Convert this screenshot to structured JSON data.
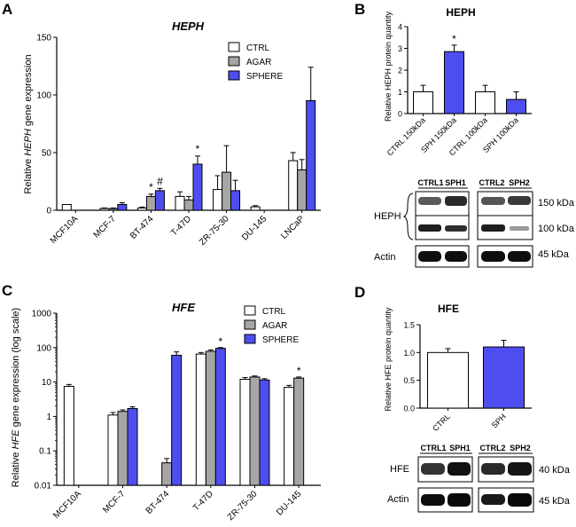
{
  "colors": {
    "ctrl": "#ffffff",
    "agar": "#a6a6a6",
    "sphere": "#4e4ef0",
    "ink": "#000000"
  },
  "chart_data": [
    {
      "panel": "A",
      "type": "bar",
      "title": "HEPH",
      "ylabel_prefix": "Relative ",
      "ylabel_gene": "HEPH",
      "ylabel_suffix": " gene expression",
      "ylim": [
        0,
        150
      ],
      "yticks": [
        "0",
        "50",
        "100",
        "150"
      ],
      "categories": [
        "MCF10A",
        "MCF-7",
        "BT-474",
        "T-47D",
        "ZR-75-30",
        "DU-145",
        "LNCaP"
      ],
      "legend": [
        "CTRL",
        "AGAR",
        "SPHERE"
      ],
      "series": [
        {
          "name": "CTRL",
          "values": [
            5,
            1.5,
            2,
            12,
            18,
            3,
            43
          ],
          "errors": [
            0,
            0.5,
            0.8,
            4,
            12,
            1,
            7
          ]
        },
        {
          "name": "AGAR",
          "values": [
            null,
            1.5,
            12,
            9,
            33,
            null,
            35
          ],
          "errors": [
            0,
            0.5,
            2,
            3,
            23,
            0,
            9
          ]
        },
        {
          "name": "SPHERE",
          "values": [
            null,
            5,
            17,
            40,
            17,
            null,
            95
          ],
          "errors": [
            0,
            1.5,
            2,
            7,
            9,
            0,
            29
          ]
        }
      ],
      "annotations": [
        {
          "text": "*",
          "category": "BT-474",
          "series": "AGAR"
        },
        {
          "text": "#",
          "category": "BT-474",
          "series": "SPHERE"
        },
        {
          "text": "*",
          "category": "T-47D",
          "series": "SPHERE"
        }
      ]
    },
    {
      "panel": "B",
      "type": "bar",
      "title": "HEPH",
      "ylabel": "Relative HEPH protein quantity",
      "ylim": [
        0,
        4
      ],
      "yticks": [
        "0",
        "1",
        "2",
        "3",
        "4"
      ],
      "categories": [
        "CTRL 150kDa",
        "SPH 150kDa",
        "CTRL 100kDa",
        "SPH 100kDa"
      ],
      "values": [
        1.0,
        2.85,
        1.0,
        0.65
      ],
      "errors": [
        0.3,
        0.3,
        0.3,
        0.35
      ],
      "bar_groups": [
        "ctrl",
        "sphere",
        "ctrl",
        "sphere"
      ],
      "annotations": [
        {
          "text": "*",
          "category": "SPH 150kDa"
        }
      ]
    },
    {
      "panel": "C",
      "type": "bar",
      "yscale": "log",
      "title": "HFE",
      "ylabel_prefix": "Relative ",
      "ylabel_gene": "HFE",
      "ylabel_suffix": " gene expression (log scale)",
      "ylim": [
        0.01,
        1000
      ],
      "yticks": [
        "0.01",
        "0.1",
        "1",
        "10",
        "100",
        "1000"
      ],
      "categories": [
        "MCF10A",
        "MCF-7",
        "BT-474",
        "T-47D",
        "ZR-75-30",
        "DU-145"
      ],
      "legend": [
        "CTRL",
        "AGAR",
        "SPHERE"
      ],
      "series": [
        {
          "name": "CTRL",
          "values": [
            7.5,
            1.1,
            null,
            65,
            12,
            7
          ],
          "errors_hi": [
            8.5,
            1.3,
            null,
            72,
            13.5,
            8
          ]
        },
        {
          "name": "AGAR",
          "values": [
            null,
            1.4,
            0.045,
            78,
            14,
            13
          ],
          "errors_hi": [
            null,
            1.55,
            0.06,
            86,
            15,
            14
          ]
        },
        {
          "name": "SPHERE",
          "values": [
            null,
            1.7,
            60,
            95,
            11.5,
            null
          ],
          "errors_hi": [
            null,
            1.9,
            75,
            100,
            12.5,
            null
          ]
        }
      ],
      "annotations": [
        {
          "text": "*",
          "category": "T-47D",
          "series": "SPHERE"
        },
        {
          "text": "*",
          "category": "DU-145",
          "series": "AGAR"
        }
      ]
    },
    {
      "panel": "D",
      "type": "bar",
      "title": "HFE",
      "ylabel": "Relative  HFE protein quantity",
      "ylim": [
        0,
        1.5
      ],
      "yticks": [
        "0.0",
        "0.5",
        "1.0",
        "1.5"
      ],
      "categories": [
        "CTRL",
        "SPH"
      ],
      "values": [
        1.0,
        1.1
      ],
      "errors": [
        0.07,
        0.12
      ],
      "bar_groups": [
        "ctrl",
        "sphere"
      ]
    }
  ],
  "blots": {
    "B": {
      "lanes_left": [
        "CTRL1",
        "SPH1"
      ],
      "lanes_right": [
        "CTRL2",
        "SPH2"
      ],
      "row_label": "HEPH",
      "actin_label": "Actin",
      "kda": [
        "150 kDa",
        "100 kDa",
        "45 kDa"
      ]
    },
    "D": {
      "lanes_left": [
        "CTRL1",
        "SPH1"
      ],
      "lanes_right": [
        "CTRL2",
        "SPH2"
      ],
      "row_label": "HFE",
      "actin_label": "Actin",
      "kda": [
        "40 kDa",
        "45 kDa"
      ]
    }
  },
  "panel_letters": [
    "A",
    "B",
    "C",
    "D"
  ]
}
